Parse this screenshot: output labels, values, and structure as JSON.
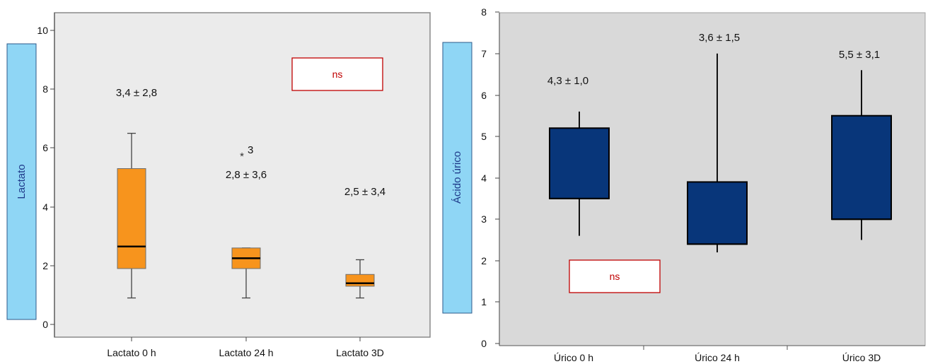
{
  "chart_data": [
    {
      "type": "box",
      "ylabel": "Lactato",
      "ylim": [
        0,
        10
      ],
      "yticks": [
        "0",
        "2",
        "4",
        "6",
        "8",
        "10"
      ],
      "categories": [
        "Lactato 0 h",
        "Lactato 24 h",
        "Lactato 3D"
      ],
      "series": [
        {
          "min": 0.9,
          "q1": 1.9,
          "median": 2.65,
          "q3": 5.3,
          "max": 6.5,
          "label": "3,4 ± 2,8"
        },
        {
          "min": 0.9,
          "q1": 1.9,
          "median": 2.25,
          "q3": 2.6,
          "max": 2.6,
          "label": "2,8 ± 3,6",
          "outlier": {
            "value": 5.8,
            "marker": "*",
            "label": "3"
          }
        },
        {
          "min": 0.9,
          "q1": 1.3,
          "median": 1.4,
          "q3": 1.7,
          "max": 2.2,
          "label": "2,5 ± 3,4"
        }
      ],
      "annotation": "ns",
      "colors": {
        "box": "#f7941d",
        "plot_bg": "#ebebeb",
        "axis_label_bg": "#8fd6f5",
        "annotation": "#c00000"
      }
    },
    {
      "type": "box",
      "ylabel": "Ácido úrico",
      "ylim": [
        0,
        8
      ],
      "yticks": [
        "0",
        "1",
        "2",
        "3",
        "4",
        "5",
        "6",
        "7",
        "8"
      ],
      "categories": [
        "Úrico 0 h",
        "Úrico 24 h",
        "Úrico 3D"
      ],
      "series": [
        {
          "min": 2.6,
          "q1": 3.5,
          "median": 3.5,
          "q3": 5.2,
          "max": 5.6,
          "label": "4,3 ± 1,0"
        },
        {
          "min": 2.2,
          "q1": 2.4,
          "median": 2.4,
          "q3": 3.9,
          "max": 7.0,
          "label": "3,6 ± 1,5"
        },
        {
          "min": 2.5,
          "q1": 3.0,
          "median": 3.0,
          "q3": 5.5,
          "max": 6.6,
          "label": "5,5 ± 3,1"
        }
      ],
      "annotation": "ns",
      "colors": {
        "box": "#08367a",
        "plot_bg": "#d9d9d9",
        "axis_label_bg": "#8fd6f5",
        "annotation": "#c00000"
      }
    }
  ]
}
